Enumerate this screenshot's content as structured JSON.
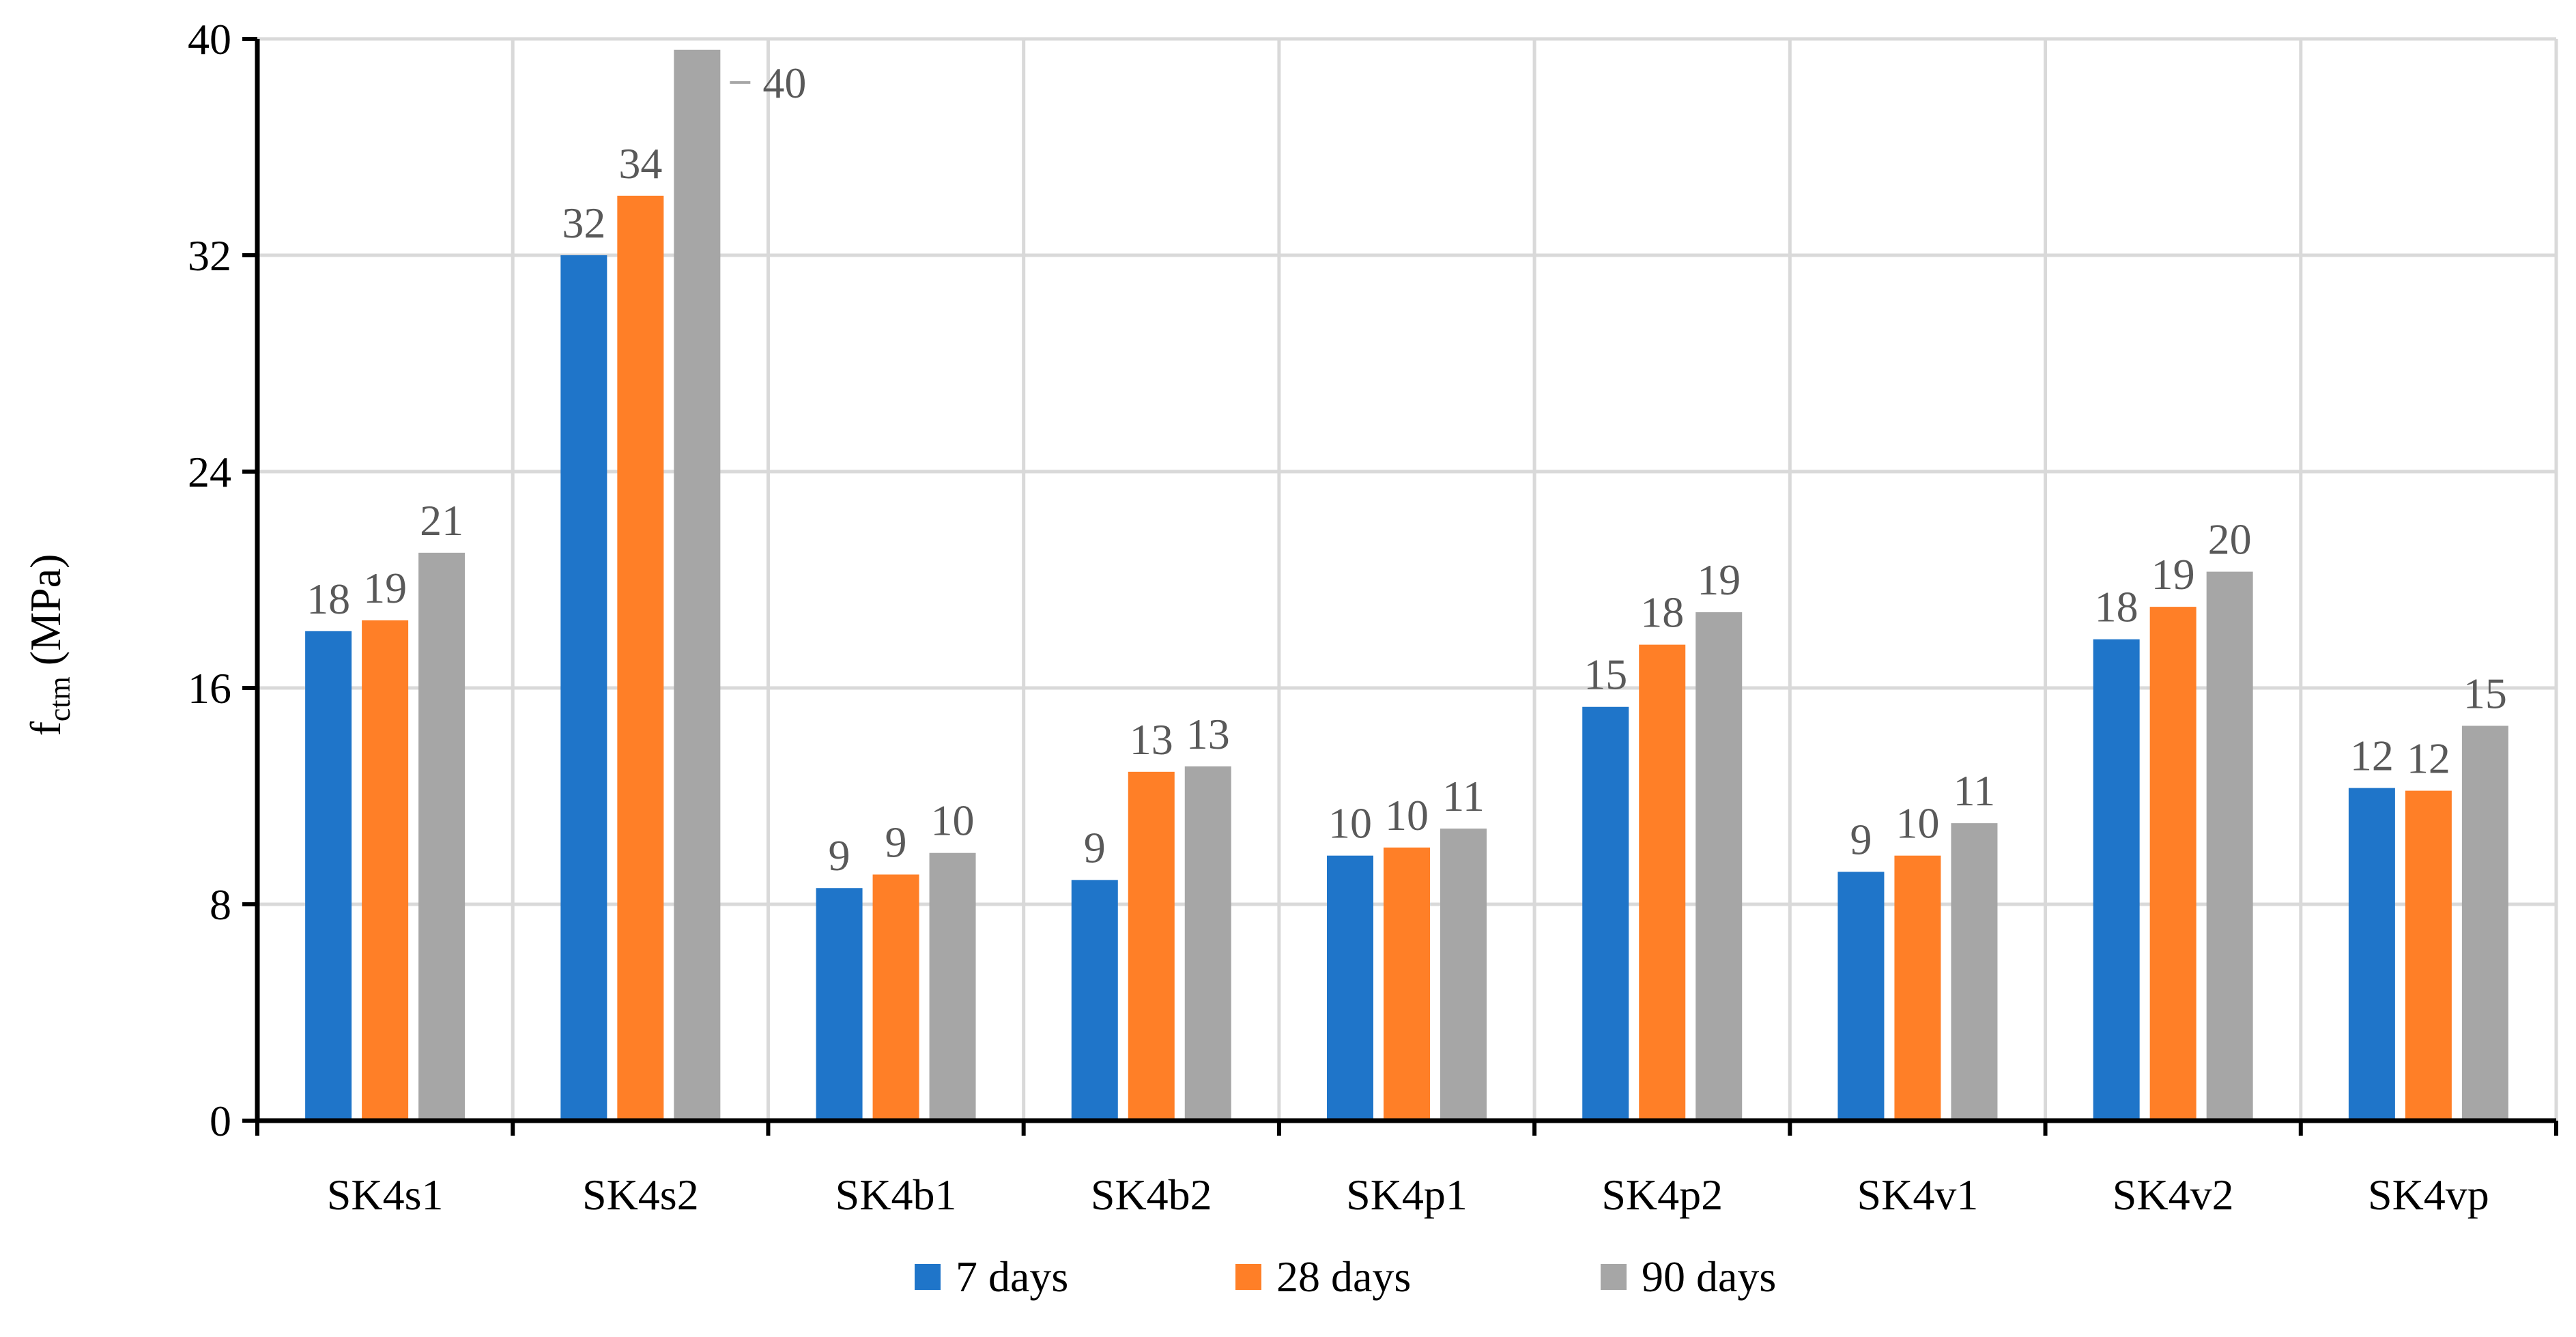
{
  "chart_data": {
    "type": "bar",
    "ylabel": "f",
    "ylabel_subscript": "ctm",
    "ylabel_unit": " (MPa)",
    "ylim": [
      0,
      40
    ],
    "yticks": [
      0,
      8,
      16,
      24,
      32,
      40
    ],
    "grid": true,
    "legend_position": "bottom",
    "categories": [
      "SK4s1",
      "SK4s2",
      "SK4b1",
      "SK4b2",
      "SK4p1",
      "SK4p2",
      "SK4v1",
      "SK4v2",
      "SK4vp"
    ],
    "series": [
      {
        "name": "7 days",
        "color": "#1F75C9",
        "values": [
          18.1,
          32.0,
          8.6,
          8.9,
          9.8,
          15.3,
          9.2,
          17.8,
          12.3
        ],
        "labels": [
          "18",
          "32",
          "9",
          "9",
          "10",
          "15",
          "9",
          "18",
          "12"
        ]
      },
      {
        "name": "28 days",
        "color": "#FF7F27",
        "values": [
          18.5,
          34.2,
          9.1,
          12.9,
          10.1,
          17.6,
          9.8,
          19.0,
          12.2
        ],
        "labels": [
          "19",
          "34",
          "9",
          "13",
          "10",
          "18",
          "10",
          "19",
          "12"
        ]
      },
      {
        "name": "90 days",
        "color": "#A6A6A6",
        "values": [
          21.0,
          39.6,
          9.9,
          13.1,
          10.8,
          18.8,
          11.0,
          20.3,
          14.6
        ],
        "labels": [
          "21",
          "40",
          "10",
          "13",
          "11",
          "19",
          "11",
          "20",
          "15"
        ]
      }
    ]
  }
}
